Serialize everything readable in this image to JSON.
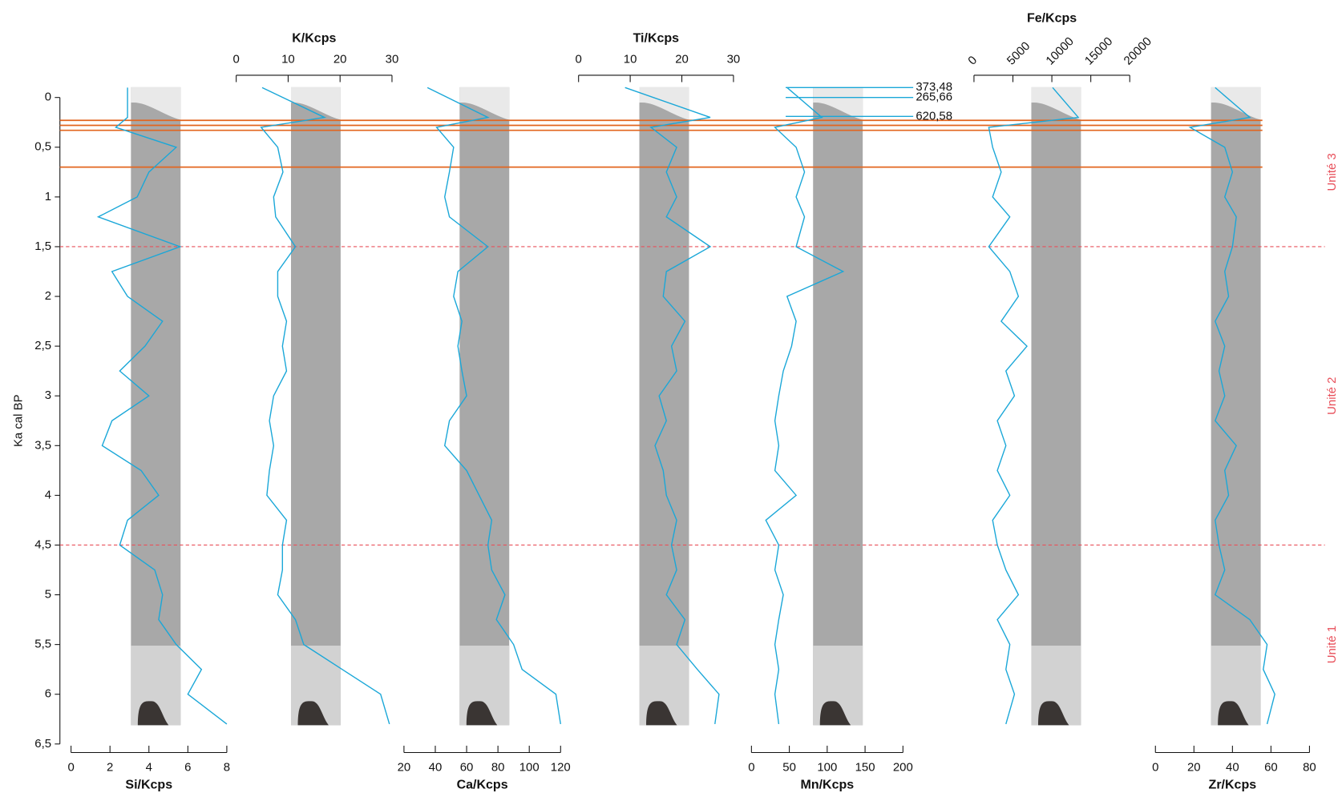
{
  "chart_data": [
    {
      "type": "line",
      "title": "Si/Kcps",
      "xaxis": "bottom",
      "xlim": [
        0,
        8
      ],
      "xticks": [
        0,
        2,
        4,
        6,
        8
      ],
      "ylabel": "Ka cal BP",
      "ylim": [
        0,
        6.5
      ],
      "yticks": [
        0,
        {
          "value": 0.5,
          "label": "0,5"
        },
        1,
        {
          "value": 1.5,
          "label": "1,5"
        },
        2,
        {
          "value": 2.5,
          "label": "2,5"
        },
        3,
        {
          "value": 3.5,
          "label": "3,5"
        },
        4,
        {
          "value": 4.5,
          "label": "4,5"
        },
        5,
        {
          "value": 5.5,
          "label": "5,5"
        },
        6,
        {
          "value": 6.5,
          "label": "6,5"
        }
      ],
      "hlines": [
        {
          "value": 0.23,
          "style": "solid",
          "color": "#e2651f"
        },
        {
          "value": 0.28,
          "style": "solid",
          "color": "#e2651f"
        },
        {
          "value": 0.33,
          "style": "solid",
          "color": "#e2651f"
        },
        {
          "value": 0.7,
          "style": "solid",
          "color": "#e2651f"
        },
        {
          "value": 1.5,
          "style": "dashed",
          "color": "#e8505b"
        },
        {
          "value": 4.5,
          "style": "dashed",
          "color": "#e8505b"
        }
      ],
      "units": [
        {
          "label": "Unité 3",
          "range": [
            0,
            1.5
          ],
          "color": "#e8505b"
        },
        {
          "label": "Unité 2",
          "range": [
            1.5,
            4.5
          ],
          "color": "#e8505b"
        },
        {
          "label": "Unité 1",
          "range": [
            4.5,
            6.5
          ],
          "color": "#e8505b"
        }
      ],
      "series": [
        {
          "color": "#1aa7d8",
          "x": [
            2.9,
            2.9,
            2.3,
            5.4,
            4,
            3.4,
            1.4,
            5.6,
            2.1,
            2.9,
            4.7,
            3.8,
            2.5,
            4,
            2.1,
            1.6,
            3.6,
            4.5,
            2.9,
            2.5,
            4.3,
            4.7,
            4.5,
            5.4,
            6.7,
            6,
            8
          ],
          "y": [
            -0.1,
            0.2,
            0.3,
            0.5,
            0.75,
            1,
            1.2,
            1.5,
            1.75,
            2,
            2.25,
            2.5,
            2.75,
            3,
            3.25,
            3.5,
            3.75,
            4,
            4.25,
            4.5,
            4.75,
            5,
            5.25,
            5.5,
            5.75,
            6,
            6.3
          ]
        }
      ]
    },
    {
      "type": "line",
      "title": "K/Kcps",
      "xaxis": "top",
      "xlim": [
        0,
        30
      ],
      "xticks": [
        0,
        10,
        20,
        30
      ],
      "series": [
        {
          "color": "#1aa7d8",
          "x": [
            5,
            17,
            4.8,
            8,
            9,
            7.2,
            7.6,
            11.4,
            8,
            8,
            9.7,
            8.9,
            9.7,
            7.2,
            6.4,
            7.2,
            6.4,
            5.9,
            9.7,
            8.9,
            8.9,
            8,
            11.4,
            13,
            20.4,
            27.8,
            29.5
          ],
          "y": [
            -0.1,
            0.2,
            0.3,
            0.5,
            0.75,
            1,
            1.2,
            1.5,
            1.75,
            2,
            2.25,
            2.5,
            2.75,
            3,
            3.25,
            3.5,
            3.75,
            4,
            4.25,
            4.5,
            4.75,
            5,
            5.25,
            5.5,
            5.75,
            6,
            6.3
          ]
        }
      ]
    },
    {
      "type": "line",
      "title": "Ca/Kcps",
      "xaxis": "bottom",
      "xlim": [
        20,
        120
      ],
      "xticks": [
        20,
        40,
        60,
        80,
        100,
        120
      ],
      "series": [
        {
          "color": "#1aa7d8",
          "x": [
            35,
            73.6,
            40.8,
            51.7,
            49,
            46,
            49,
            73.6,
            54.4,
            51.7,
            57,
            54.4,
            57,
            60,
            49,
            46,
            60,
            68,
            76,
            73.6,
            76,
            84.5,
            79,
            90,
            95.4,
            117,
            120
          ],
          "y": [
            -0.1,
            0.2,
            0.3,
            0.5,
            0.75,
            1,
            1.2,
            1.5,
            1.75,
            2,
            2.25,
            2.5,
            2.75,
            3,
            3.25,
            3.5,
            3.75,
            4,
            4.25,
            4.5,
            4.75,
            5,
            5.25,
            5.5,
            5.75,
            6,
            6.3
          ]
        }
      ]
    },
    {
      "type": "line",
      "title": "Ti/Kcps",
      "xaxis": "top",
      "xlim": [
        0,
        30
      ],
      "xticks": [
        0,
        10,
        20,
        30
      ],
      "series": [
        {
          "color": "#1aa7d8",
          "x": [
            9,
            25.5,
            14,
            19,
            17,
            19,
            17,
            25.5,
            17,
            16.4,
            20.6,
            18,
            19,
            15.6,
            17,
            14.8,
            16.4,
            17,
            19,
            18,
            19,
            17,
            20.6,
            19,
            23,
            27.2,
            26.4
          ],
          "y": [
            -0.1,
            0.2,
            0.3,
            0.5,
            0.75,
            1,
            1.2,
            1.5,
            1.75,
            2,
            2.25,
            2.5,
            2.75,
            3,
            3.25,
            3.5,
            3.75,
            4,
            4.25,
            4.5,
            4.75,
            5,
            5.25,
            5.5,
            5.75,
            6,
            6.3
          ]
        }
      ]
    },
    {
      "type": "line",
      "title": "Mn/Kcps",
      "xaxis": "bottom",
      "xlim": [
        0,
        200
      ],
      "xticks": [
        0,
        50,
        100,
        150,
        200
      ],
      "annotations": [
        {
          "label": "373,48",
          "value": 373.48,
          "y": -0.1
        },
        {
          "label": "265,66",
          "value": 265.66,
          "y": 0
        },
        {
          "label": "620,58",
          "value": 620.58,
          "y": 0.19
        }
      ],
      "series": [
        {
          "color": "#1aa7d8",
          "x": [
            47,
            93,
            31,
            59,
            70,
            59,
            70,
            59,
            121,
            47,
            59,
            53,
            42,
            36,
            31,
            36,
            31,
            59,
            19,
            36,
            31,
            42,
            36,
            31,
            36,
            31,
            36
          ],
          "y": [
            -0.1,
            0.2,
            0.3,
            0.5,
            0.75,
            1,
            1.2,
            1.5,
            1.75,
            2,
            2.25,
            2.5,
            2.75,
            3,
            3.25,
            3.5,
            3.75,
            4,
            4.25,
            4.5,
            4.75,
            5,
            5.25,
            5.5,
            5.75,
            6,
            6.3
          ]
        }
      ]
    },
    {
      "type": "line",
      "title": "Fe/Kcps",
      "xaxis": "top",
      "xtick_rotation": -45,
      "xlim": [
        0,
        20000
      ],
      "xticks": [
        0,
        5000,
        10000,
        15000,
        20000
      ],
      "series": [
        {
          "color": "#1aa7d8",
          "x": [
            10100,
            13400,
            1900,
            2400,
            3500,
            2400,
            4600,
            1900,
            4600,
            5700,
            3500,
            6800,
            4100,
            5200,
            3000,
            4100,
            3000,
            4600,
            2400,
            3000,
            4100,
            5700,
            3000,
            4600,
            4100,
            5200,
            4100
          ],
          "y": [
            -0.1,
            0.2,
            0.3,
            0.5,
            0.75,
            1,
            1.2,
            1.5,
            1.75,
            2,
            2.25,
            2.5,
            2.75,
            3,
            3.25,
            3.5,
            3.75,
            4,
            4.25,
            4.5,
            4.75,
            5,
            5.25,
            5.5,
            5.75,
            6,
            6.3
          ]
        }
      ]
    },
    {
      "type": "line",
      "title": "Zr/Kcps",
      "xaxis": "bottom",
      "xlim": [
        0,
        80
      ],
      "xticks": [
        0,
        20,
        40,
        60,
        80
      ],
      "series": [
        {
          "color": "#1aa7d8",
          "x": [
            31,
            49,
            18,
            36,
            40,
            36,
            42,
            40,
            36,
            38,
            31,
            36,
            33,
            36,
            31,
            42,
            36,
            38,
            31,
            33,
            36,
            31,
            49,
            58,
            56,
            62,
            58
          ],
          "y": [
            -0.1,
            0.2,
            0.3,
            0.5,
            0.75,
            1,
            1.2,
            1.5,
            1.75,
            2,
            2.25,
            2.5,
            2.75,
            3,
            3.25,
            3.5,
            3.75,
            4,
            4.25,
            4.5,
            4.75,
            5,
            5.25,
            5.5,
            5.75,
            6,
            6.3
          ]
        }
      ]
    }
  ]
}
